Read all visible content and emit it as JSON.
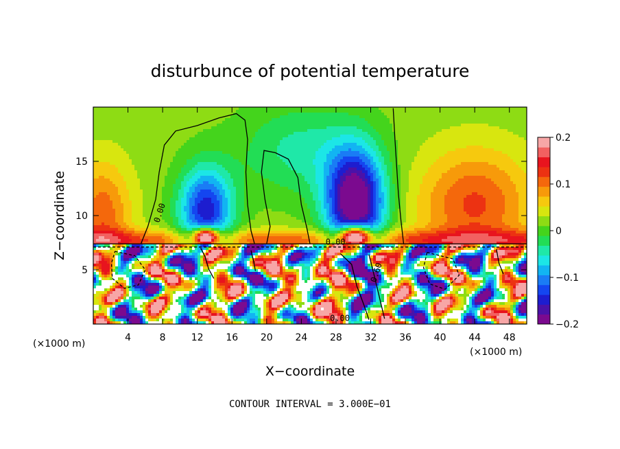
{
  "chart_data": {
    "type": "heatmap",
    "title": "disturbunce of potential temperature",
    "xlabel": "X−coordinate",
    "ylabel": "Z−coordinate",
    "x_unit_left": "(×1000 m)",
    "x_unit_right": "(×1000 m)",
    "xlim": [
      0,
      50
    ],
    "ylim": [
      0,
      20
    ],
    "x_ticks": [
      4,
      8,
      12,
      16,
      20,
      24,
      28,
      32,
      36,
      40,
      44,
      48
    ],
    "y_ticks": [
      5,
      10,
      15
    ],
    "colorbar": {
      "ticks": [
        0.2,
        0.1,
        0,
        -0.1,
        -0.2
      ],
      "tick_labels": [
        "0.2",
        "0.1",
        "0",
        "−0.1",
        "−0.2"
      ],
      "range": [
        -0.2,
        0.2
      ],
      "colors": [
        "#7b0a8f",
        "#4a12a8",
        "#1d1dcf",
        "#1446f0",
        "#1a7cf5",
        "#12b4f2",
        "#1ce6e6",
        "#1fe8a8",
        "#22dd55",
        "#44d41c",
        "#8edc14",
        "#d8e60f",
        "#f6c90e",
        "#f79a0a",
        "#f4680c",
        "#ec3212",
        "#e8141e",
        "#f26060",
        "#f7a6a6"
      ]
    },
    "contour_labels": [
      "0.00",
      "0.00",
      "0.00",
      "0.60"
    ],
    "contour_interval_text": "CONTOUR INTERVAL = 3.000E−01",
    "grid": false
  }
}
